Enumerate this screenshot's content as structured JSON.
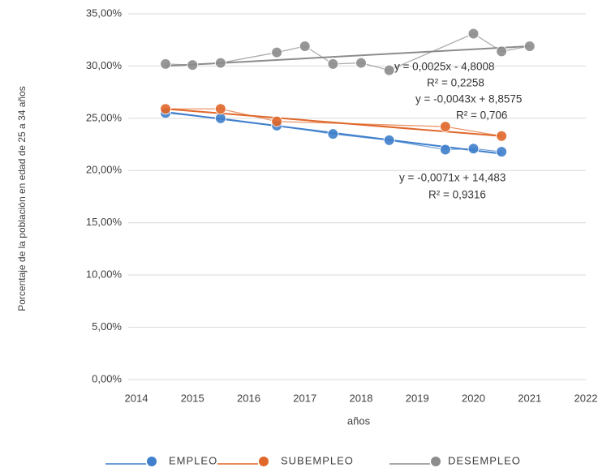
{
  "chart_data": {
    "type": "line",
    "y_label": "Porcentaje de la población en edad de 25 a 34 años",
    "x_label": "años",
    "xlim": [
      2014,
      2022
    ],
    "xticks": [
      2014,
      2015,
      2016,
      2017,
      2018,
      2019,
      2020,
      2021,
      2022
    ],
    "ylim": [
      0,
      35
    ],
    "yticks": [
      {
        "value": 0,
        "label": "0,00%"
      },
      {
        "value": 5,
        "label": "5,00%"
      },
      {
        "value": 10,
        "label": "10,00%"
      },
      {
        "value": 15,
        "label": "15,00%"
      },
      {
        "value": 20,
        "label": "20,00%"
      },
      {
        "value": 25,
        "label": "25,00%"
      },
      {
        "value": 30,
        "label": "30,00%"
      },
      {
        "value": 35,
        "label": "35,00%"
      }
    ],
    "grid": true,
    "legend": "bottom",
    "series": [
      {
        "name": "EMPLEO",
        "color": "#3f7fcc",
        "x": [
          2014.52,
          2015.5,
          2016.5,
          2017.5,
          2018.5,
          2019.5,
          2020.0,
          2020.5
        ],
        "values": [
          25.5,
          25.0,
          24.3,
          23.5,
          22.9,
          22.0,
          22.1,
          21.8
        ],
        "trend_values": [
          25.6,
          21.6
        ]
      },
      {
        "name": "SUBEMPLEO",
        "color": "#e0672a",
        "x": [
          2014.52,
          2015.5,
          2016.5,
          2019.5,
          2020.5
        ],
        "values": [
          25.9,
          25.9,
          24.7,
          24.2,
          23.3
        ],
        "trend_values": [
          25.9,
          23.3
        ]
      },
      {
        "name": "DESEMPLEO",
        "color": "#8c8c8c",
        "x": [
          2014.52,
          2015.0,
          2015.5,
          2016.5,
          2017.0,
          2017.5,
          2018.0,
          2018.5,
          2020.0,
          2020.5,
          2021.0
        ],
        "values": [
          30.2,
          30.1,
          30.3,
          31.3,
          31.9,
          30.2,
          30.3,
          29.6,
          33.1,
          31.4,
          31.9
        ],
        "trend_values": [
          30.0,
          31.9
        ]
      }
    ],
    "annotations": [
      "y = 0,0025x - 4,8008",
      "R² = 0,2258",
      "y = -0,0043x + 8,8575",
      "R² = 0,706",
      "y = -0,0071x + 14,483",
      "R² = 0,9316"
    ]
  }
}
